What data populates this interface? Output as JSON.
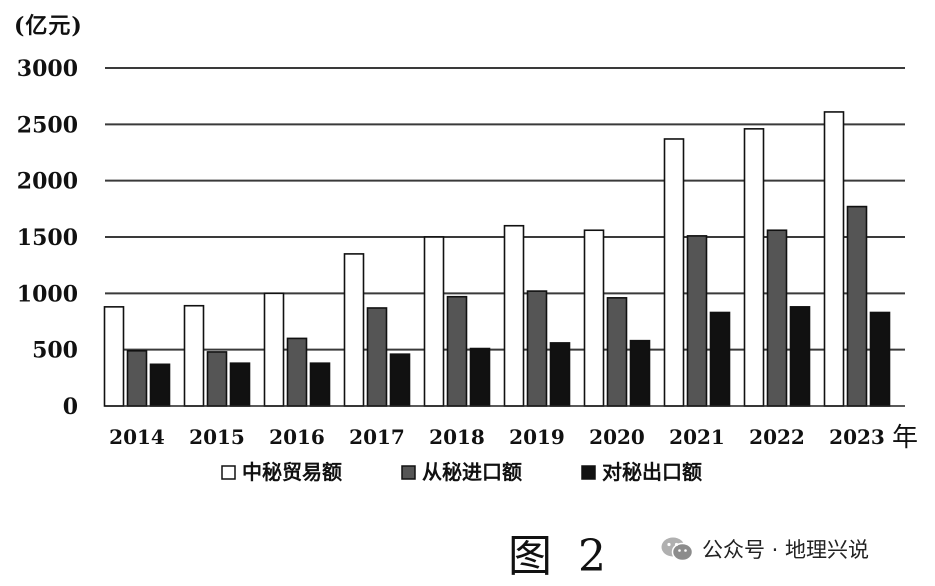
{
  "chart_data": {
    "type": "bar",
    "unit_label": "(亿元)",
    "x_unit": "年",
    "categories": [
      "2014",
      "2015",
      "2016",
      "2017",
      "2018",
      "2019",
      "2020",
      "2021",
      "2022",
      "2023"
    ],
    "series": [
      {
        "name": "中秘贸易额",
        "color": "#ffffff",
        "values": [
          880,
          890,
          1000,
          1350,
          1500,
          1600,
          1560,
          2370,
          2460,
          2610
        ]
      },
      {
        "name": "从秘进口额",
        "color": "#555555",
        "values": [
          490,
          480,
          600,
          870,
          970,
          1020,
          960,
          1510,
          1560,
          1770
        ]
      },
      {
        "name": "对秘出口额",
        "color": "#111111",
        "values": [
          370,
          380,
          380,
          460,
          510,
          560,
          580,
          830,
          880,
          830
        ]
      }
    ],
    "yticks": [
      0,
      500,
      1000,
      1500,
      2000,
      2500,
      3000
    ],
    "ylim": [
      0,
      3000
    ],
    "grid": true,
    "legend_position": "bottom"
  },
  "figure_label": "图 2",
  "watermark": {
    "text": "公众号 · 地理兴说",
    "icon": "wechat-icon"
  }
}
